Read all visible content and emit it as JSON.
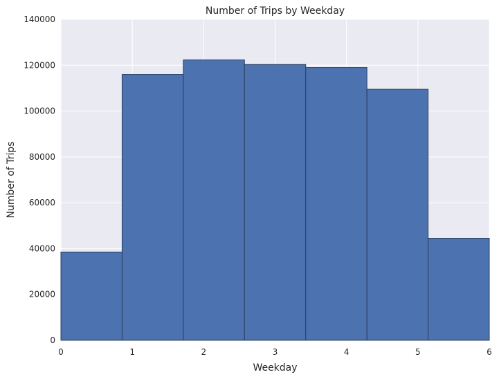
{
  "chart_data": {
    "type": "bar",
    "title": "Number of Trips by Weekday",
    "xlabel": "Weekday",
    "ylabel": "Number of Trips",
    "xlim": [
      0,
      6
    ],
    "ylim": [
      0,
      140000
    ],
    "bins": [
      {
        "start": 0.0,
        "end": 0.857,
        "value": 38500
      },
      {
        "start": 0.857,
        "end": 1.714,
        "value": 116000
      },
      {
        "start": 1.714,
        "end": 2.571,
        "value": 122300
      },
      {
        "start": 2.571,
        "end": 3.429,
        "value": 120300
      },
      {
        "start": 3.429,
        "end": 4.286,
        "value": 119000
      },
      {
        "start": 4.286,
        "end": 5.143,
        "value": 109500
      },
      {
        "start": 5.143,
        "end": 6.0,
        "value": 44500
      }
    ],
    "xticks": [
      "0",
      "1",
      "2",
      "3",
      "4",
      "5",
      "6"
    ],
    "xtick_values": [
      0,
      1,
      2,
      3,
      4,
      5,
      6
    ],
    "yticks": [
      "0",
      "20000",
      "40000",
      "60000",
      "80000",
      "100000",
      "120000",
      "140000"
    ],
    "ytick_values": [
      0,
      20000,
      40000,
      60000,
      80000,
      100000,
      120000,
      140000
    ],
    "grid": true,
    "colors": {
      "bar_fill": "#4c72b0",
      "bar_edge": "#2a3f5f",
      "plot_background": "#eaeaf2",
      "grid": "#ffffff"
    }
  }
}
